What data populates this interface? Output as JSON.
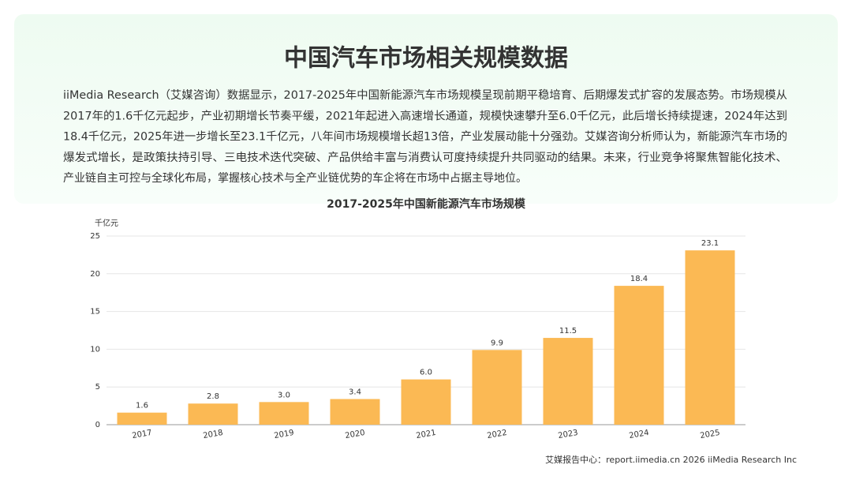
{
  "chart_data": {
    "type": "bar",
    "heading": "中国汽车市场相关规模数据",
    "paragraph_lines": [
      "iiMedia Research（艾媒咨询）数据显示，2017-2025年中国新能源汽车市场规模呈现前期平稳培育、后期爆发式扩容的发展态势。市场规模从",
      "2017年的1.6千亿元起步，产业初期增长节奏平缓，2021年起进入高速增长通道，规模快速攀升至6.0千亿元，此后增长持续提速，2024年达到",
      "18.4千亿元，2025年进一步增长至23.1千亿元，八年间市场规模增长超13倍，产业发展动能十分强劲。艾媒咨询分析师认为，新能源汽车市场的",
      "爆发式增长，是政策扶持引导、三电技术迭代突破、产品供给丰富与消费认可度持续提升共同驱动的结果。未来，行业竞争将聚焦智能化技术、",
      "产业链自主可控与全球化布局，掌握核心技术与全产业链优势的车企将在市场中占据主导地位。"
    ],
    "title": "2017-2025年中国新能源汽车市场规模",
    "y_unit": "千亿元",
    "categories": [
      "2017",
      "2018",
      "2019",
      "2020",
      "2021",
      "2022",
      "2023",
      "2024",
      "2025"
    ],
    "values": [
      1.6,
      2.8,
      3.0,
      3.4,
      6.0,
      9.9,
      11.5,
      18.4,
      23.1
    ],
    "value_labels": [
      "1.6",
      "2.8",
      "3.0",
      "3.4",
      "6.0",
      "9.9",
      "11.5",
      "18.4",
      "23.1"
    ],
    "color": "#fbb954",
    "ylim": [
      0,
      25
    ],
    "yticks": [
      0,
      5,
      10,
      15,
      20,
      25
    ],
    "grid": true,
    "source": "艾媒报告中心：report.iimedia.cn  2026 iiMedia Research Inc"
  }
}
